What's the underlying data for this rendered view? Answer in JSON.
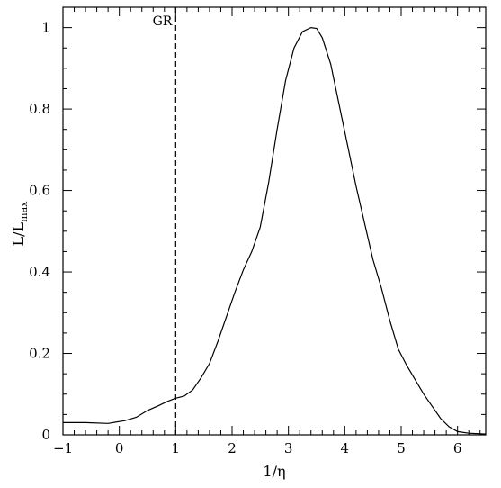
{
  "chart_data": {
    "type": "line",
    "title": "",
    "xlabel": "1/η",
    "ylabel_main": "L/L",
    "ylabel_sub": "max",
    "xlim": [
      -1,
      6.5
    ],
    "ylim": [
      0,
      1.05
    ],
    "x_ticks": [
      -1,
      0,
      1,
      2,
      3,
      4,
      5,
      6
    ],
    "x_tick_labels": [
      "−1",
      "0",
      "1",
      "2",
      "3",
      "4",
      "5",
      "6"
    ],
    "y_ticks": [
      0,
      0.2,
      0.4,
      0.6,
      0.8,
      1.0
    ],
    "y_tick_labels": [
      "0",
      "0.2",
      "0.4",
      "0.6",
      "0.8",
      "1"
    ],
    "grid": false,
    "reference_line": {
      "x": 1,
      "label": "GR",
      "style": "dashed"
    },
    "series": [
      {
        "x": [
          -1.0,
          -0.6,
          -0.2,
          0.1,
          0.3,
          0.5,
          0.7,
          0.85,
          1.0,
          1.15,
          1.3,
          1.45,
          1.6,
          1.75,
          1.9,
          2.05,
          2.2,
          2.35,
          2.5,
          2.65,
          2.8,
          2.95,
          3.1,
          3.25,
          3.4,
          3.5,
          3.6,
          3.75,
          3.9,
          4.05,
          4.2,
          4.35,
          4.5,
          4.65,
          4.8,
          4.95,
          5.1,
          5.25,
          5.4,
          5.55,
          5.7,
          5.85,
          6.0,
          6.2,
          6.5
        ],
        "y": [
          0.03,
          0.03,
          0.028,
          0.035,
          0.043,
          0.06,
          0.072,
          0.082,
          0.09,
          0.095,
          0.11,
          0.14,
          0.175,
          0.23,
          0.29,
          0.35,
          0.405,
          0.45,
          0.51,
          0.62,
          0.75,
          0.87,
          0.95,
          0.99,
          1.0,
          0.998,
          0.975,
          0.91,
          0.81,
          0.71,
          0.61,
          0.52,
          0.43,
          0.36,
          0.28,
          0.21,
          0.17,
          0.135,
          0.1,
          0.07,
          0.04,
          0.02,
          0.008,
          0.004,
          0.002
        ]
      }
    ]
  }
}
